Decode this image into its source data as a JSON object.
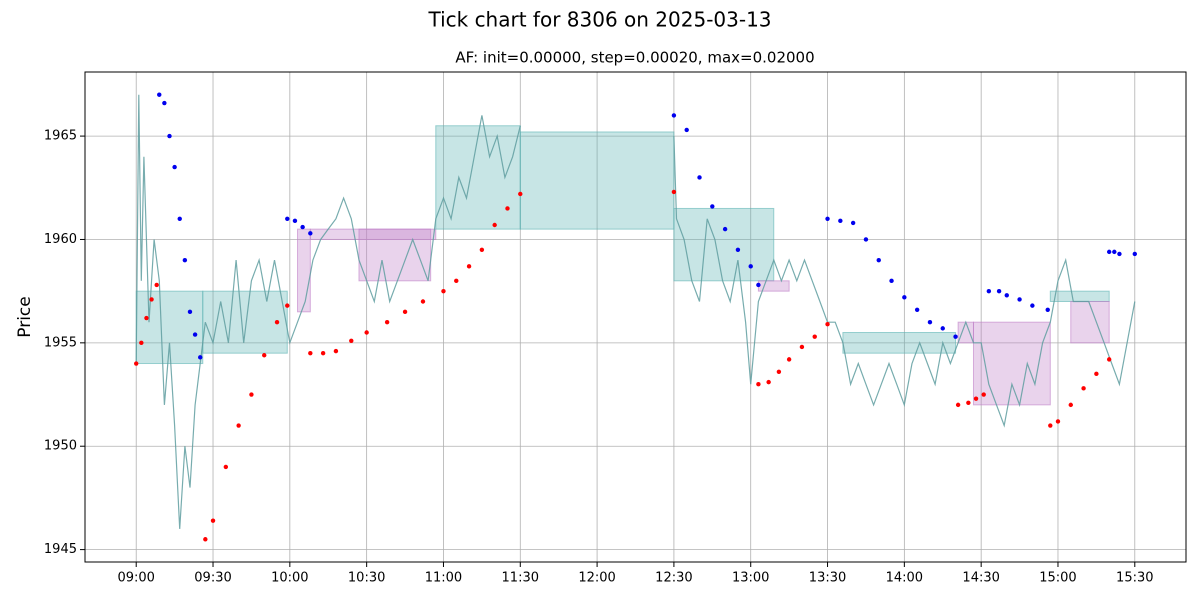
{
  "chart_data": {
    "type": "line",
    "title": "Tick chart for 8306 on 2025-03-13",
    "subtitle": "AF: init=0.00000, step=0.00020, max=0.02000",
    "y_label": "Price",
    "xlim": [
      "08:40",
      "15:50"
    ],
    "ylim": [
      1944.4,
      1968.1
    ],
    "xticks": [
      "09:00",
      "09:30",
      "10:00",
      "10:30",
      "11:00",
      "11:30",
      "12:00",
      "12:30",
      "13:00",
      "13:30",
      "14:00",
      "14:30",
      "15:00",
      "15:30"
    ],
    "yticks": [
      1945,
      1950,
      1955,
      1960,
      1965
    ],
    "grid": true,
    "regions": [
      {
        "x": [
          "09:00",
          "09:26"
        ],
        "y": [
          1954,
          1957.5
        ],
        "color": "#5fb4b4"
      },
      {
        "x": [
          "09:26",
          "09:59"
        ],
        "y": [
          1954.5,
          1957.5
        ],
        "color": "#5fb4b4"
      },
      {
        "x": [
          "10:03",
          "10:08"
        ],
        "y": [
          1956.5,
          1960.5
        ],
        "color": "#c080c8"
      },
      {
        "x": [
          "10:08",
          "10:57"
        ],
        "y": [
          1960,
          1960.5
        ],
        "color": "#c080c8"
      },
      {
        "x": [
          "10:27",
          "10:55"
        ],
        "y": [
          1958,
          1960.5
        ],
        "color": "#c080c8"
      },
      {
        "x": [
          "10:57",
          "11:30"
        ],
        "y": [
          1960.5,
          1965.5
        ],
        "color": "#5fb4b4"
      },
      {
        "x": [
          "11:30",
          "12:30"
        ],
        "y": [
          1960.5,
          1965.2
        ],
        "color": "#5fb4b4"
      },
      {
        "x": [
          "12:30",
          "13:09"
        ],
        "y": [
          1958,
          1961.5
        ],
        "color": "#5fb4b4"
      },
      {
        "x": [
          "13:03",
          "13:15"
        ],
        "y": [
          1957.5,
          1958
        ],
        "color": "#c080c8"
      },
      {
        "x": [
          "13:36",
          "14:20"
        ],
        "y": [
          1954.5,
          1955.5
        ],
        "color": "#5fb4b4"
      },
      {
        "x": [
          "14:21",
          "14:27"
        ],
        "y": [
          1955,
          1956
        ],
        "color": "#c080c8"
      },
      {
        "x": [
          "14:27",
          "14:57"
        ],
        "y": [
          1952,
          1956
        ],
        "color": "#c080c8"
      },
      {
        "x": [
          "14:57",
          "15:20"
        ],
        "y": [
          1957,
          1957.5
        ],
        "color": "#5fb4b4"
      },
      {
        "x": [
          "15:05",
          "15:20"
        ],
        "y": [
          1955,
          1957
        ],
        "color": "#c080c8"
      }
    ],
    "series": [
      {
        "style": "line",
        "color": "#5f9ea0",
        "x": [
          "09:00",
          "09:01",
          "09:02",
          "09:03",
          "09:05",
          "09:07",
          "09:09",
          "09:11",
          "09:13",
          "09:15",
          "09:17",
          "09:19",
          "09:21",
          "09:23",
          "09:25",
          "09:27",
          "09:30",
          "09:33",
          "09:36",
          "09:39",
          "09:42",
          "09:45",
          "09:48",
          "09:51",
          "09:54",
          "09:57",
          "10:00",
          "10:03",
          "10:06",
          "10:09",
          "10:12",
          "10:15",
          "10:18",
          "10:21",
          "10:24",
          "10:27",
          "10:30",
          "10:33",
          "10:36",
          "10:39",
          "10:42",
          "10:45",
          "10:48",
          "10:51",
          "10:54",
          "10:57",
          "11:00",
          "11:03",
          "11:06",
          "11:09",
          "11:12",
          "11:15",
          "11:18",
          "11:21",
          "11:24",
          "11:27",
          "11:30",
          "12:00",
          "12:30",
          "12:31",
          "12:34",
          "12:37",
          "12:40",
          "12:43",
          "12:46",
          "12:49",
          "12:52",
          "12:55",
          "12:58",
          "13:00",
          "13:03",
          "13:06",
          "13:09",
          "13:12",
          "13:15",
          "13:18",
          "13:21",
          "13:24",
          "13:27",
          "13:30",
          "13:33",
          "13:36",
          "13:39",
          "13:42",
          "13:45",
          "13:48",
          "13:51",
          "13:54",
          "13:57",
          "14:00",
          "14:03",
          "14:06",
          "14:09",
          "14:12",
          "14:15",
          "14:18",
          "14:21",
          "14:24",
          "14:27",
          "14:30",
          "14:33",
          "14:36",
          "14:39",
          "14:42",
          "14:45",
          "14:48",
          "14:51",
          "14:54",
          "14:57",
          "15:00",
          "15:03",
          "15:06",
          "15:09",
          "15:12",
          "15:15",
          "15:18",
          "15:21",
          "15:24",
          "15:30"
        ],
        "values": [
          1954,
          1967,
          1958,
          1964,
          1956,
          1960,
          1958,
          1952,
          1955,
          1951,
          1946,
          1950,
          1948,
          1952,
          1954,
          1956,
          1955,
          1957,
          1955,
          1959,
          1955,
          1958,
          1959,
          1957,
          1959,
          1957,
          1955,
          1956,
          1957,
          1959,
          1960,
          1960.5,
          1961,
          1962,
          1961,
          1959,
          1958,
          1957,
          1959,
          1957,
          1958,
          1959,
          1960,
          1959,
          1958,
          1961,
          1962,
          1961,
          1963,
          1962,
          1964,
          1966,
          1964,
          1965,
          1963,
          1964,
          1965.5,
          null,
          1965,
          1961,
          1960,
          1958,
          1957,
          1961,
          1960,
          1958,
          1957,
          1959,
          1956,
          1953,
          1957,
          1958,
          1959,
          1958,
          1959,
          1958,
          1959,
          1958,
          1957,
          1956,
          1956,
          1955,
          1953,
          1954,
          1953,
          1952,
          1953,
          1954,
          1953,
          1952,
          1954,
          1955,
          1954,
          1953,
          1955,
          1954,
          1955,
          1956,
          1955,
          1955,
          1953,
          1952,
          1951,
          1953,
          1952,
          1954,
          1953,
          1955,
          1956,
          1958,
          1959,
          1957,
          1957,
          1957,
          1956,
          1955,
          1954,
          1953,
          1957
        ]
      },
      {
        "style": "dots",
        "color": "#ff0000",
        "x": [
          "09:00",
          "09:02",
          "09:04",
          "09:06",
          "09:08",
          "09:27",
          "09:30",
          "09:35",
          "09:40",
          "09:45",
          "09:50",
          "09:55",
          "09:59",
          "10:08",
          "10:13",
          "10:18",
          "10:24",
          "10:30",
          "10:38",
          "10:45",
          "10:52",
          "11:00",
          "11:05",
          "11:10",
          "11:15",
          "11:20",
          "11:25",
          "11:30",
          "12:30",
          "13:03",
          "13:07",
          "13:11",
          "13:15",
          "13:20",
          "13:25",
          "13:30",
          "14:21",
          "14:25",
          "14:28",
          "14:31",
          "14:57",
          "15:00",
          "15:05",
          "15:10",
          "15:15",
          "15:20"
        ],
        "values": [
          1954,
          1955,
          1956.2,
          1957.1,
          1957.8,
          1945.5,
          1946.4,
          1949,
          1951,
          1952.5,
          1954.4,
          1956,
          1956.8,
          1954.5,
          1954.5,
          1954.6,
          1955.1,
          1955.5,
          1956,
          1956.5,
          1957,
          1957.5,
          1958,
          1958.7,
          1959.5,
          1960.7,
          1961.5,
          1962.2,
          1962.3,
          1953,
          1953.1,
          1953.6,
          1954.2,
          1954.8,
          1955.3,
          1955.9,
          1952,
          1952.1,
          1952.3,
          1952.5,
          1951,
          1951.2,
          1952,
          1952.8,
          1953.5,
          1954.2
        ]
      },
      {
        "style": "dots",
        "color": "#0000ee",
        "x": [
          "09:09",
          "09:11",
          "09:13",
          "09:15",
          "09:17",
          "09:19",
          "09:21",
          "09:23",
          "09:25",
          "09:59",
          "10:02",
          "10:05",
          "10:08",
          "12:30",
          "12:35",
          "12:40",
          "12:45",
          "12:50",
          "12:55",
          "13:00",
          "13:03",
          "13:30",
          "13:35",
          "13:40",
          "13:45",
          "13:50",
          "13:55",
          "14:00",
          "14:05",
          "14:10",
          "14:15",
          "14:20",
          "14:33",
          "14:37",
          "14:40",
          "14:45",
          "14:50",
          "14:56",
          "15:20",
          "15:22",
          "15:24",
          "15:30"
        ],
        "values": [
          1967,
          1966.6,
          1965,
          1963.5,
          1961,
          1959,
          1956.5,
          1955.4,
          1954.3,
          1961,
          1960.9,
          1960.6,
          1960.3,
          1966,
          1965.3,
          1963,
          1961.6,
          1960.5,
          1959.5,
          1958.7,
          1957.8,
          1961,
          1960.9,
          1960.8,
          1960,
          1959,
          1958,
          1957.2,
          1956.6,
          1956,
          1955.7,
          1955.3,
          1957.5,
          1957.5,
          1957.3,
          1957.1,
          1956.8,
          1956.6,
          1959.4,
          1959.4,
          1959.3,
          1959.3
        ]
      }
    ]
  }
}
